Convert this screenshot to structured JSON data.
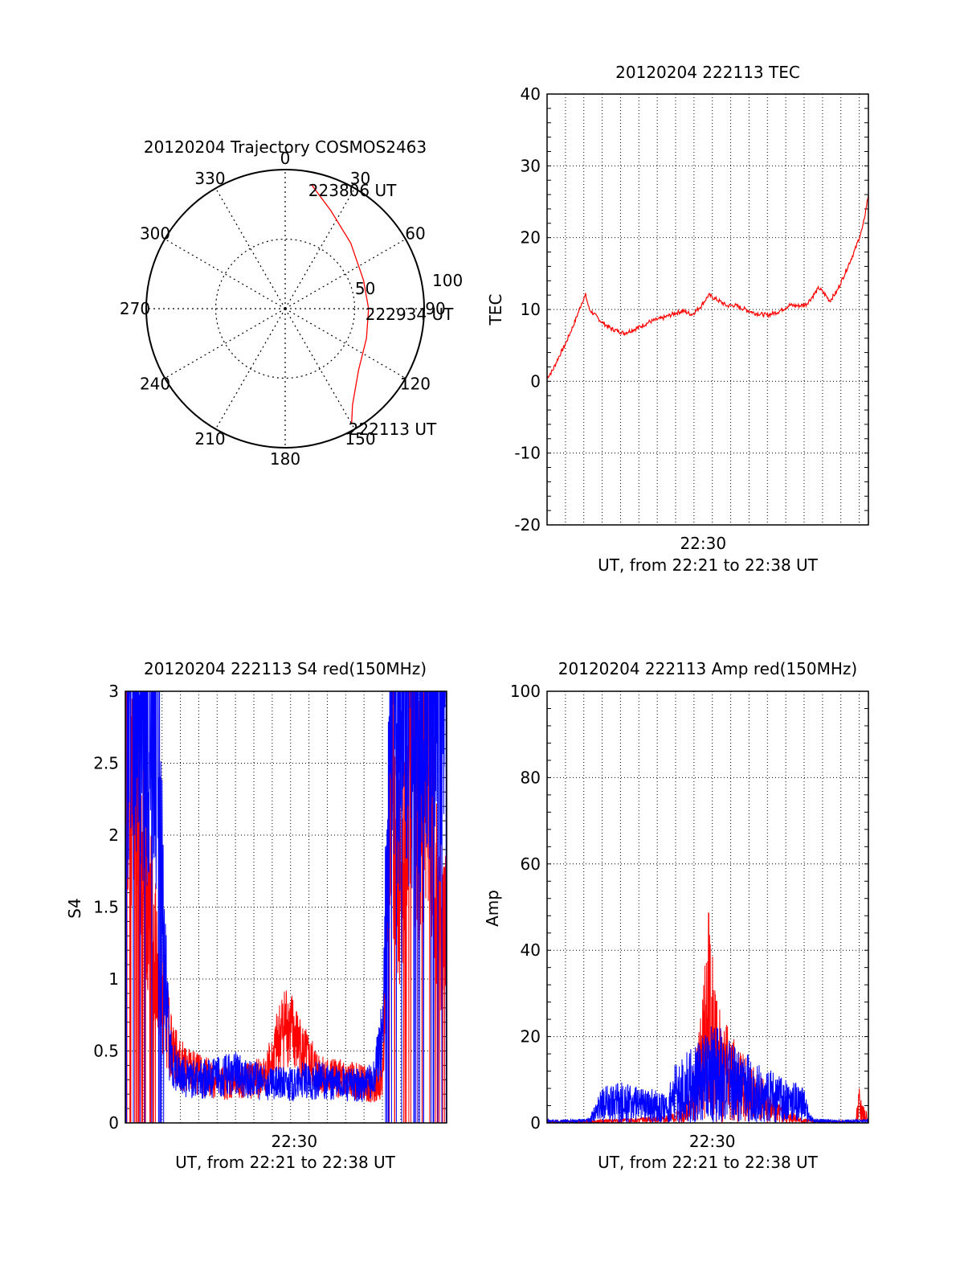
{
  "chart_data": [
    {
      "id": "polar",
      "type": "polar-trajectory",
      "title": "20120204 Trajectory COSMOS2463",
      "azimuth_labels": [
        "0",
        "30",
        "60",
        "90",
        "120",
        "150",
        "180",
        "210",
        "240",
        "270",
        "300",
        "330"
      ],
      "radial_ticks": [
        {
          "label": "50",
          "elevation": 50
        },
        {
          "label": "100",
          "elevation": 0
        }
      ],
      "track_color": "#ff0000",
      "track": [
        {
          "az": 12,
          "el": 8
        },
        {
          "az": 25,
          "el": 20
        },
        {
          "az": 45,
          "el": 30
        },
        {
          "az": 70,
          "el": 36
        },
        {
          "az": 90,
          "el": 36
        },
        {
          "az": 110,
          "el": 34
        },
        {
          "az": 130,
          "el": 28
        },
        {
          "az": 145,
          "el": 14
        },
        {
          "az": 150,
          "el": 4
        }
      ],
      "time_labels": [
        {
          "label": "223806 UT",
          "az": 12,
          "el": 8
        },
        {
          "label": "222934 UT",
          "az": 90,
          "el": 36
        },
        {
          "label": "222113 UT",
          "az": 150,
          "el": 4
        }
      ]
    },
    {
      "id": "tec",
      "type": "line",
      "title": "20120204 222113 TEC",
      "xlabel": "UT, from 22:21 to 22:38 UT",
      "ylabel": "TEC",
      "xlim": [
        0,
        17.5
      ],
      "ylim": [
        -20,
        40
      ],
      "yticks": [
        -20,
        -10,
        0,
        10,
        20,
        30,
        40
      ],
      "xtick_labels": [
        {
          "x": 8.5,
          "label": "22:30"
        }
      ],
      "grid": true,
      "series": [
        {
          "color": "#ff0000",
          "x": [
            0,
            0.3,
            0.6,
            1.0,
            1.5,
            1.9,
            2.1,
            2.3,
            3.0,
            3.5,
            4.2,
            5.0,
            5.6,
            6.3,
            7.0,
            7.4,
            7.9,
            8.4,
            8.8,
            9.3,
            9.8,
            10.2,
            10.7,
            11.3,
            12.0,
            12.6,
            13.2,
            13.7,
            14.1,
            14.4,
            14.8,
            15.1,
            15.4,
            15.8,
            16.3,
            16.8,
            17.2,
            17.5
          ],
          "y": [
            0.5,
            1.5,
            3.2,
            5.2,
            8.2,
            11.0,
            12.0,
            10.0,
            8.2,
            7.3,
            6.7,
            7.5,
            8.3,
            8.8,
            9.5,
            9.8,
            9.3,
            10.5,
            12.0,
            11.3,
            10.5,
            10.6,
            10.1,
            9.5,
            9.2,
            9.7,
            10.6,
            10.5,
            10.7,
            11.6,
            13.0,
            12.2,
            11.2,
            12.6,
            15.5,
            18.5,
            21.5,
            26.0
          ]
        }
      ]
    },
    {
      "id": "s4",
      "type": "line",
      "title": "20120204 222113 S4 red(150MHz)",
      "xlabel": "UT, from 22:21 to 22:38 UT",
      "ylabel": "S4",
      "xlim": [
        0,
        17.5
      ],
      "ylim": [
        0,
        3
      ],
      "yticks": [
        0,
        0.5,
        1,
        1.5,
        2,
        2.5,
        3
      ],
      "ytick_labels": [
        "0",
        "0.5",
        "1",
        "1.5",
        "2",
        "2.5",
        "3"
      ],
      "xtick_labels": [
        {
          "x": 9.2,
          "label": "22:30"
        }
      ],
      "grid": true,
      "series": [
        {
          "color": "#ff0000",
          "x": [
            0,
            0.3,
            0.6,
            0.9,
            1.2,
            1.5,
            1.8,
            2.1,
            2.4,
            2.6,
            3.0,
            4.0,
            5.0,
            6.0,
            7.0,
            7.5,
            8.0,
            8.4,
            8.8,
            9.2,
            9.6,
            10.0,
            10.5,
            11.0,
            12.0,
            13.0,
            13.5,
            14.0,
            14.5,
            15.0,
            15.5,
            16.0,
            16.5,
            17.0,
            17.5
          ],
          "y": [
            2.8,
            2.3,
            2.6,
            2.0,
            1.6,
            1.3,
            1.0,
            0.8,
            0.6,
            0.5,
            0.4,
            0.33,
            0.3,
            0.28,
            0.3,
            0.32,
            0.42,
            0.6,
            0.7,
            0.6,
            0.5,
            0.42,
            0.36,
            0.32,
            0.3,
            0.28,
            0.25,
            0.3,
            2.5,
            1.5,
            2.8,
            2.0,
            2.6,
            1.5,
            1.3
          ]
        },
        {
          "color": "#0000ff",
          "x": [
            0,
            0.3,
            0.6,
            0.9,
            1.2,
            1.5,
            1.8,
            2.1,
            2.4,
            2.6,
            3.0,
            4.0,
            5.0,
            6.0,
            7.0,
            7.5,
            8.0,
            8.4,
            8.8,
            9.2,
            9.6,
            10.0,
            10.5,
            11.0,
            12.0,
            13.0,
            13.5,
            14.0,
            14.5,
            15.0,
            15.5,
            16.0,
            16.5,
            17.0,
            17.5
          ],
          "y": [
            3.0,
            2.9,
            3.0,
            2.8,
            3.0,
            2.9,
            2.7,
            1.2,
            0.5,
            0.4,
            0.33,
            0.3,
            0.32,
            0.34,
            0.3,
            0.28,
            0.26,
            0.28,
            0.27,
            0.26,
            0.3,
            0.28,
            0.3,
            0.28,
            0.27,
            0.26,
            0.3,
            0.6,
            3.0,
            2.9,
            3.0,
            2.8,
            3.0,
            2.9,
            2.9
          ]
        }
      ]
    },
    {
      "id": "amp",
      "type": "line",
      "title": "20120204 222113 Amp red(150MHz)",
      "xlabel": "UT, from 22:21 to 22:38 UT",
      "ylabel": "Amp",
      "xlim": [
        0,
        17.5
      ],
      "ylim": [
        0,
        100
      ],
      "yticks": [
        0,
        20,
        40,
        60,
        80,
        100
      ],
      "xtick_labels": [
        {
          "x": 9.0,
          "label": "22:30"
        }
      ],
      "grid": true,
      "series": [
        {
          "color": "#ff0000",
          "x": [
            0,
            2.0,
            3.0,
            4.0,
            5.0,
            6.0,
            7.0,
            7.5,
            8.0,
            8.5,
            8.8,
            9.0,
            9.2,
            9.5,
            10.0,
            10.5,
            11.0,
            11.5,
            12.0,
            13.0,
            14.0,
            15.0,
            16.0,
            16.8,
            17.0,
            17.2,
            17.5
          ],
          "y": [
            0.5,
            0.5,
            0.8,
            1.0,
            1.2,
            1.5,
            2.5,
            4,
            12,
            30,
            55,
            40,
            28,
            24,
            20,
            16,
            14,
            12,
            8,
            3,
            1,
            0.5,
            0.5,
            0.5,
            9,
            6,
            0.5
          ]
        },
        {
          "color": "#0000ff",
          "x": [
            0,
            1.5,
            2.2,
            2.6,
            3.0,
            4.0,
            5.0,
            6.0,
            6.5,
            7.0,
            7.5,
            8.0,
            8.5,
            9.0,
            9.5,
            10.0,
            10.5,
            11.0,
            11.5,
            12.0,
            13.0,
            14.0,
            14.3,
            14.5,
            15.5,
            16.5,
            17.5
          ],
          "y": [
            0.8,
            0.8,
            1.0,
            4,
            8,
            9,
            8,
            8,
            6,
            14,
            15,
            18,
            20,
            22,
            21,
            18,
            16,
            15,
            13,
            12,
            10,
            8,
            2,
            1.0,
            0.8,
            0.8,
            0.8
          ]
        }
      ]
    }
  ]
}
